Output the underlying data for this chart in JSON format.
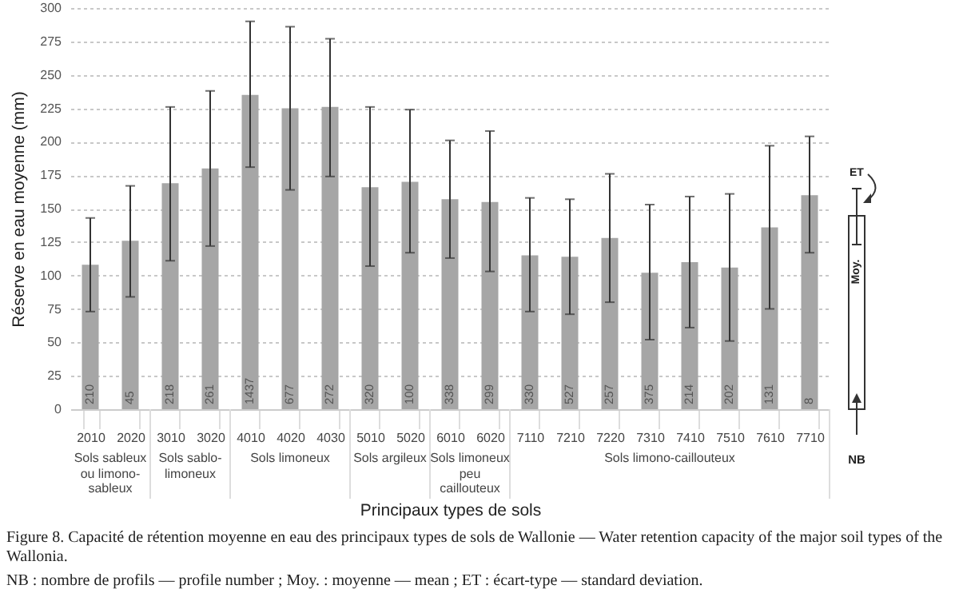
{
  "chart_data": {
    "type": "bar",
    "ylabel": "Réserve en eau moyenne (mm)",
    "xlabel": "Principaux types de sols",
    "categories": [
      "2010",
      "2020",
      "3010",
      "3020",
      "4010",
      "4020",
      "4030",
      "5010",
      "5020",
      "6010",
      "6020",
      "7110",
      "7210",
      "7220",
      "7310",
      "7410",
      "7510",
      "7610",
      "7710"
    ],
    "values": [
      108,
      126,
      169,
      180,
      235,
      225,
      226,
      166,
      170,
      157,
      155,
      115,
      114,
      128,
      102,
      110,
      106,
      136,
      160
    ],
    "errors": [
      [
        73,
        143
      ],
      [
        84,
        167
      ],
      [
        111,
        226
      ],
      [
        122,
        238
      ],
      [
        181,
        290
      ],
      [
        164,
        286
      ],
      [
        174,
        277
      ],
      [
        107,
        226
      ],
      [
        117,
        224
      ],
      [
        113,
        201
      ],
      [
        103,
        208
      ],
      [
        73,
        158
      ],
      [
        71,
        157
      ],
      [
        80,
        176
      ],
      [
        52,
        153
      ],
      [
        61,
        159
      ],
      [
        51,
        161
      ],
      [
        75,
        197
      ],
      [
        117,
        204
      ]
    ],
    "color": "#a6a6a6",
    "ylim": [
      0,
      300
    ],
    "yticks": [
      0,
      25,
      50,
      75,
      100,
      125,
      150,
      175,
      200,
      225,
      250,
      275,
      300
    ],
    "grid": "y",
    "annotations": [
      "Sols sableux ou limono-sableux",
      "Sols sablo-limoneux",
      "Sols limoneux",
      "Sols argileux",
      "Sols limoneux peu caillouteux",
      "Sols limono-caillouteux",
      "Moy.",
      "ET",
      "NB",
      "Figure 8. Capacité de rétention moyenne en eau des principaux types de sols de Wallonie — Water retention capacity of the major soil types of the Wallonia.",
      "NB : nombre de profils — profile number ; Moy. : moyenne — mean ; ET : écart-type — standard deviation.",
      {
        "text": "210",
        "x": "2010",
        "y": 0
      },
      {
        "text": "45",
        "x": "2020",
        "y": 0
      },
      {
        "text": "218",
        "x": "3010",
        "y": 0
      },
      {
        "text": "261",
        "x": "3020",
        "y": 0
      },
      {
        "text": "1437",
        "x": "4010",
        "y": 0
      },
      {
        "text": "677",
        "x": "4020",
        "y": 0
      },
      {
        "text": "272",
        "x": "4030",
        "y": 0
      },
      {
        "text": "320",
        "x": "5010",
        "y": 0
      },
      {
        "text": "100",
        "x": "5020",
        "y": 0
      },
      {
        "text": "338",
        "x": "6010",
        "y": 0
      },
      {
        "text": "299",
        "x": "6020",
        "y": 0
      },
      {
        "text": "330",
        "x": "7110",
        "y": 0
      },
      {
        "text": "527",
        "x": "7210",
        "y": 0
      },
      {
        "text": "257",
        "x": "7220",
        "y": 0
      },
      {
        "text": "375",
        "x": "7310",
        "y": 0
      },
      {
        "text": "214",
        "x": "7410",
        "y": 0
      },
      {
        "text": "202",
        "x": "7510",
        "y": 0
      },
      {
        "text": "131",
        "x": "7610",
        "y": 0
      },
      {
        "text": "8",
        "x": "7710",
        "y": 0
      }
    ]
  }
}
